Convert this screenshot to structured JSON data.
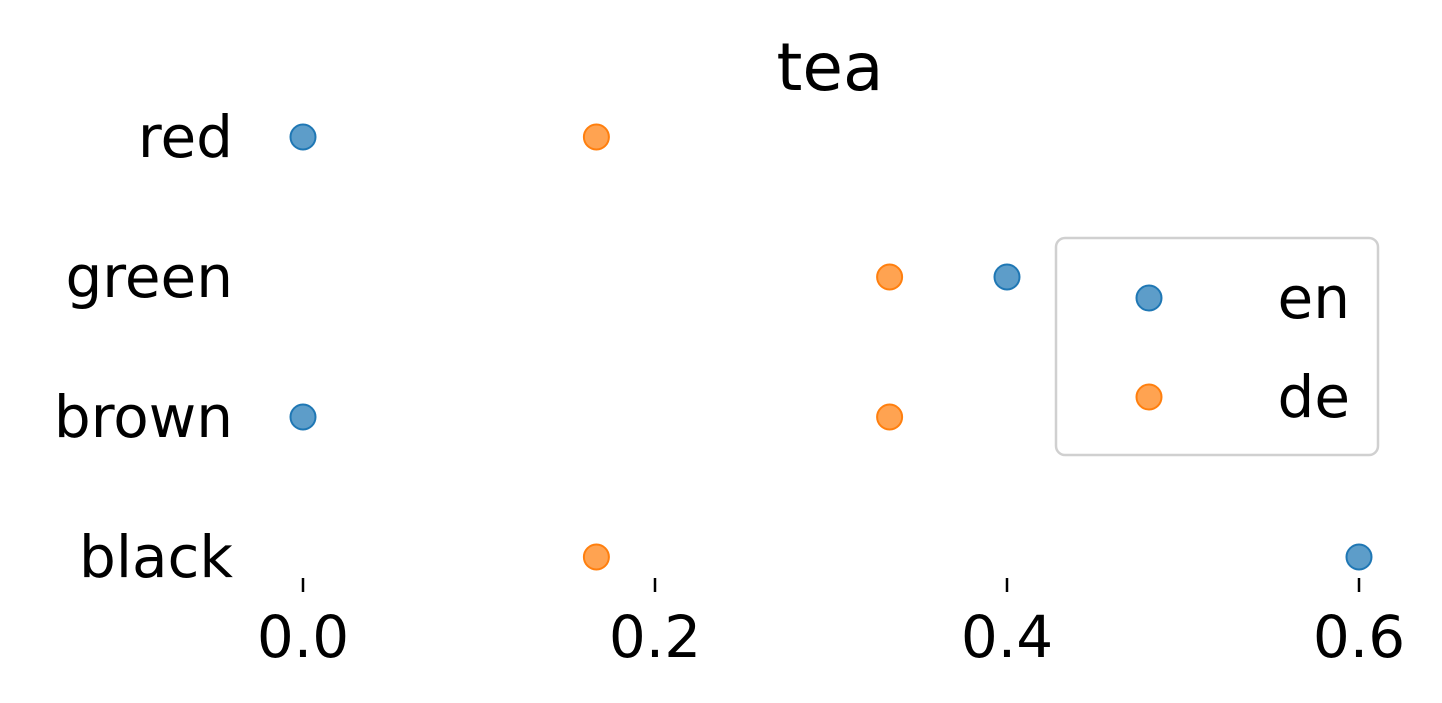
{
  "chart_data": {
    "type": "scatter",
    "title": "tea",
    "xlabel": "",
    "ylabel": "",
    "categories": [
      "red",
      "green",
      "brown",
      "black"
    ],
    "x_ticks": [
      0.0,
      0.2,
      0.4,
      0.6
    ],
    "x_tick_labels": [
      "0.0",
      "0.2",
      "0.4",
      "0.6"
    ],
    "xlim": [
      -0.04,
      0.604
    ],
    "grid": false,
    "legend_position": "right",
    "series": [
      {
        "name": "en",
        "color": "#1f77b4",
        "values": [
          0.0,
          0.4,
          0.0,
          0.6
        ]
      },
      {
        "name": "de",
        "color": "#ff7f0e",
        "values": [
          0.1667,
          0.3333,
          0.3333,
          0.1667
        ]
      }
    ]
  }
}
